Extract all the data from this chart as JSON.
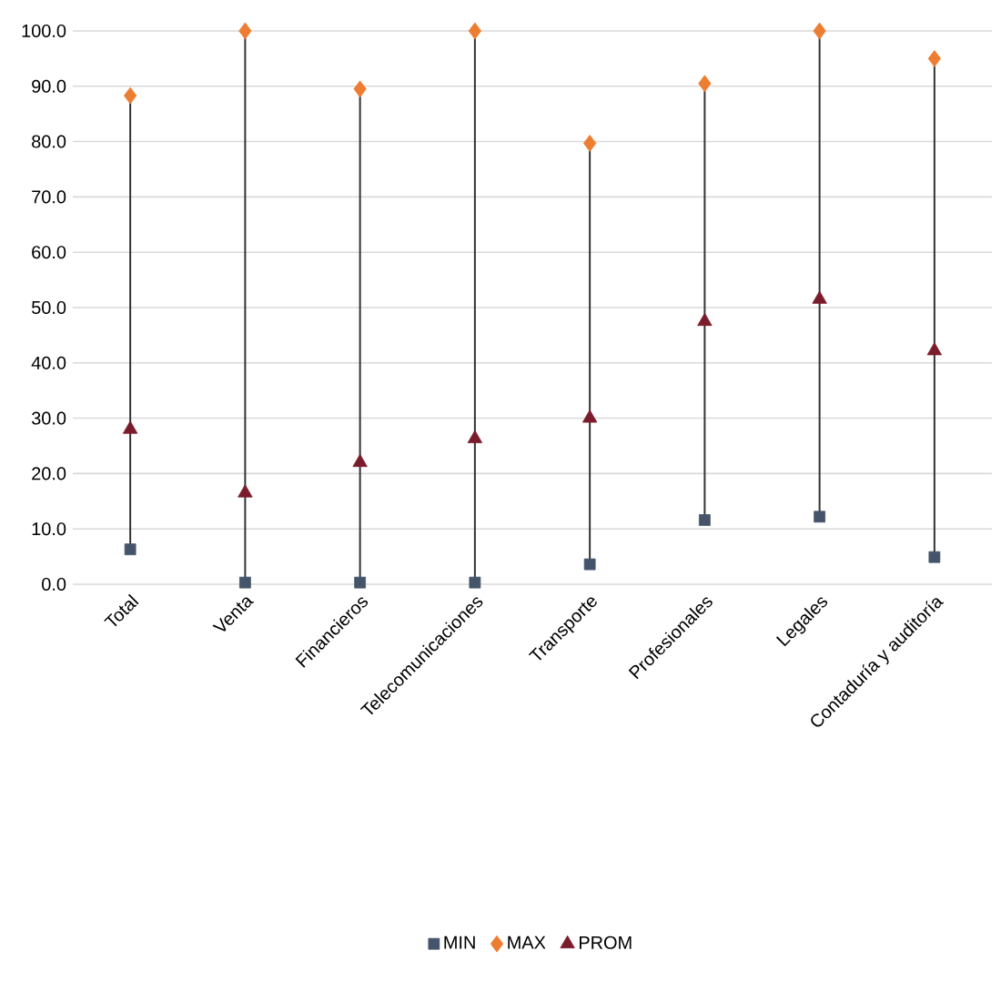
{
  "chart_data": {
    "type": "scatter",
    "categories": [
      "Total",
      "Venta",
      "Financieros",
      "Telecomunicaciones",
      "Transporte",
      "Profesionales",
      "Legales",
      "Contaduría y auditoría"
    ],
    "series": [
      {
        "name": "MIN",
        "color": "#44546a",
        "marker": "square",
        "values": [
          6.3,
          0.3,
          0.3,
          0.3,
          3.6,
          11.6,
          12.2,
          4.9
        ]
      },
      {
        "name": "MAX",
        "color": "#ed7d31",
        "marker": "diamond",
        "values": [
          88.3,
          100,
          89.5,
          100,
          79.7,
          90.5,
          100,
          95
        ]
      },
      {
        "name": "PROM",
        "color": "#7b1c2c",
        "marker": "triangle",
        "values": [
          28,
          16.5,
          22,
          26.3,
          30,
          47.5,
          51.5,
          42.2
        ]
      }
    ],
    "ylim": [
      0,
      100
    ],
    "yticks": [
      {
        "value": 0,
        "label": "0.0"
      },
      {
        "value": 10,
        "label": "10.0"
      },
      {
        "value": 20,
        "label": "20.0"
      },
      {
        "value": 30,
        "label": "30.0"
      },
      {
        "value": 40,
        "label": "40.0"
      },
      {
        "value": 50,
        "label": "50.0"
      },
      {
        "value": 60,
        "label": "60.0"
      },
      {
        "value": 70,
        "label": "70.0"
      },
      {
        "value": 80,
        "label": "80.0"
      },
      {
        "value": 90,
        "label": "90.0"
      },
      {
        "value": 100,
        "label": "100.0"
      }
    ],
    "grid": "y",
    "legend": "bottom"
  }
}
